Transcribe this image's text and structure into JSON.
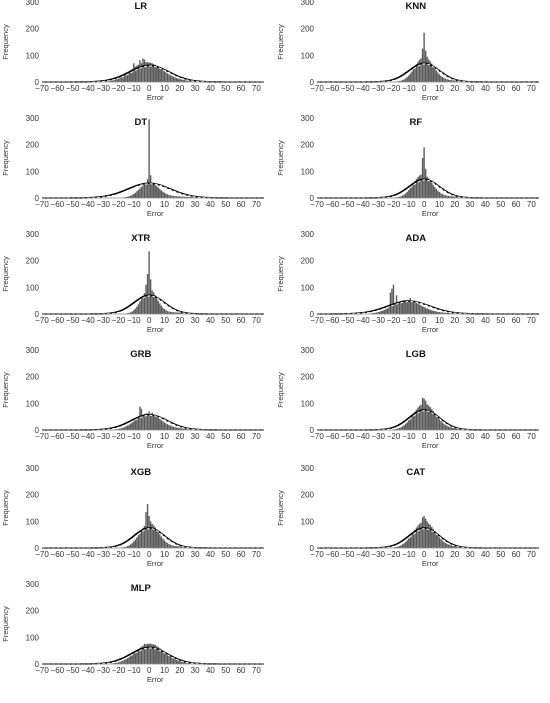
{
  "figure": {
    "bar_color": "#595959",
    "normal_curve_color": "#000000",
    "density_curve_color": "#ffffff"
  },
  "chart_data": [
    {
      "type": "bar",
      "title": "LR",
      "xlabel": "Error",
      "ylabel": "Frequency",
      "xlim": [
        -70,
        75
      ],
      "ylim": [
        0,
        300
      ],
      "xticks": [
        -70,
        -60,
        -50,
        -40,
        -30,
        -20,
        -10,
        0,
        10,
        20,
        30,
        40,
        50,
        60,
        70
      ],
      "yticks": [
        0,
        100,
        200,
        300
      ],
      "grid": false,
      "legend": "none",
      "bin_width": 1,
      "histogram": {
        "center": -2,
        "sigma": 10,
        "peak": 70,
        "spikes": [
          [
            -6,
            82
          ],
          [
            -4,
            88
          ],
          [
            -3,
            84
          ],
          [
            -10,
            70
          ]
        ]
      },
      "series": [
        {
          "type": "line",
          "mean": 0,
          "std": 13,
          "peak": 62
        }
      ]
    },
    {
      "type": "bar",
      "title": "KNN",
      "xlabel": "Error",
      "ylabel": "Frequency",
      "xlim": [
        -70,
        75
      ],
      "ylim": [
        0,
        300
      ],
      "xticks": [
        -70,
        -60,
        -50,
        -40,
        -30,
        -20,
        -10,
        0,
        10,
        20,
        30,
        40,
        50,
        60,
        70
      ],
      "yticks": [
        0,
        100,
        200,
        300
      ],
      "grid": false,
      "legend": "none",
      "bin_width": 1,
      "histogram": {
        "center": 0,
        "sigma": 6,
        "peak": 90,
        "spikes": [
          [
            0,
            185
          ],
          [
            -1,
            125
          ],
          [
            1,
            118
          ],
          [
            2,
            95
          ]
        ]
      },
      "series": [
        {
          "type": "line",
          "mean": 0,
          "std": 10,
          "peak": 70
        }
      ]
    },
    {
      "type": "bar",
      "title": "DT",
      "xlabel": "Error",
      "ylabel": "Frequency",
      "xlim": [
        -70,
        75
      ],
      "ylim": [
        0,
        300
      ],
      "xticks": [
        -70,
        -60,
        -50,
        -40,
        -30,
        -20,
        -10,
        0,
        10,
        20,
        30,
        40,
        50,
        60,
        70
      ],
      "yticks": [
        0,
        100,
        200,
        300
      ],
      "grid": false,
      "legend": "none",
      "bin_width": 1,
      "histogram": {
        "center": 0,
        "sigma": 6,
        "peak": 55,
        "spikes": [
          [
            0,
            295
          ],
          [
            1,
            85
          ],
          [
            -1,
            70
          ]
        ]
      },
      "series": [
        {
          "type": "line",
          "mean": 0,
          "std": 14,
          "peak": 55
        }
      ]
    },
    {
      "type": "bar",
      "title": "RF",
      "xlabel": "Error",
      "ylabel": "Frequency",
      "xlim": [
        -70,
        75
      ],
      "ylim": [
        0,
        300
      ],
      "xticks": [
        -70,
        -60,
        -50,
        -40,
        -30,
        -20,
        -10,
        0,
        10,
        20,
        30,
        40,
        50,
        60,
        70
      ],
      "yticks": [
        0,
        100,
        200,
        300
      ],
      "grid": false,
      "legend": "none",
      "bin_width": 1,
      "histogram": {
        "center": -1,
        "sigma": 6,
        "peak": 85,
        "spikes": [
          [
            0,
            190
          ],
          [
            -1,
            150
          ],
          [
            1,
            110
          ]
        ]
      },
      "series": [
        {
          "type": "line",
          "mean": 0,
          "std": 10,
          "peak": 70
        }
      ]
    },
    {
      "type": "bar",
      "title": "XTR",
      "xlabel": "Error",
      "ylabel": "Frequency",
      "xlim": [
        -70,
        75
      ],
      "ylim": [
        0,
        300
      ],
      "xticks": [
        -70,
        -60,
        -50,
        -40,
        -30,
        -20,
        -10,
        0,
        10,
        20,
        30,
        40,
        50,
        60,
        70
      ],
      "yticks": [
        0,
        100,
        200,
        300
      ],
      "grid": false,
      "legend": "none",
      "bin_width": 1,
      "histogram": {
        "center": 0,
        "sigma": 5,
        "peak": 90,
        "spikes": [
          [
            0,
            235
          ],
          [
            -1,
            150
          ],
          [
            1,
            130
          ],
          [
            -2,
            110
          ]
        ]
      },
      "series": [
        {
          "type": "line",
          "mean": 0,
          "std": 10,
          "peak": 70
        }
      ]
    },
    {
      "type": "bar",
      "title": "ADA",
      "xlabel": "Error",
      "ylabel": "Frequency",
      "xlim": [
        -70,
        75
      ],
      "ylim": [
        0,
        300
      ],
      "xticks": [
        -70,
        -60,
        -50,
        -40,
        -30,
        -20,
        -10,
        0,
        10,
        20,
        30,
        40,
        50,
        60,
        70
      ],
      "yticks": [
        0,
        100,
        200,
        300
      ],
      "grid": false,
      "legend": "none",
      "bin_width": 1,
      "histogram": {
        "center": -12,
        "sigma": 9,
        "peak": 48,
        "spikes": [
          [
            -20,
            110
          ],
          [
            -21,
            95
          ],
          [
            -22,
            80
          ],
          [
            -18,
            70
          ],
          [
            -9,
            60
          ]
        ]
      },
      "series": [
        {
          "type": "line",
          "mean": -10,
          "std": 14,
          "peak": 48
        }
      ]
    },
    {
      "type": "bar",
      "title": "GRB",
      "xlabel": "Error",
      "ylabel": "Frequency",
      "xlim": [
        -70,
        75
      ],
      "ylim": [
        0,
        300
      ],
      "xticks": [
        -70,
        -60,
        -50,
        -40,
        -30,
        -20,
        -10,
        0,
        10,
        20,
        30,
        40,
        50,
        60,
        70
      ],
      "yticks": [
        0,
        100,
        200,
        300
      ],
      "grid": false,
      "legend": "none",
      "bin_width": 1,
      "histogram": {
        "center": -1,
        "sigma": 8,
        "peak": 58,
        "spikes": [
          [
            -6,
            88
          ],
          [
            -5,
            80
          ],
          [
            0,
            70
          ],
          [
            2,
            65
          ]
        ]
      },
      "series": [
        {
          "type": "line",
          "mean": 0,
          "std": 12,
          "peak": 57
        }
      ]
    },
    {
      "type": "bar",
      "title": "LGB",
      "xlabel": "Error",
      "ylabel": "Frequency",
      "xlim": [
        -70,
        75
      ],
      "ylim": [
        0,
        300
      ],
      "xticks": [
        -70,
        -60,
        -50,
        -40,
        -30,
        -20,
        -10,
        0,
        10,
        20,
        30,
        40,
        50,
        60,
        70
      ],
      "yticks": [
        0,
        100,
        200,
        300
      ],
      "grid": false,
      "legend": "none",
      "bin_width": 1,
      "histogram": {
        "center": 0,
        "sigma": 7,
        "peak": 95,
        "spikes": [
          [
            -1,
            120
          ],
          [
            0,
            118
          ],
          [
            1,
            110
          ]
        ]
      },
      "series": [
        {
          "type": "line",
          "mean": 0,
          "std": 10,
          "peak": 75
        }
      ]
    },
    {
      "type": "bar",
      "title": "XGB",
      "xlabel": "Error",
      "ylabel": "Frequency",
      "xlim": [
        -70,
        75
      ],
      "ylim": [
        0,
        300
      ],
      "xticks": [
        -70,
        -60,
        -50,
        -40,
        -30,
        -20,
        -10,
        0,
        10,
        20,
        30,
        40,
        50,
        60,
        70
      ],
      "yticks": [
        0,
        100,
        200,
        300
      ],
      "grid": false,
      "legend": "none",
      "bin_width": 1,
      "histogram": {
        "center": 0,
        "sigma": 6,
        "peak": 90,
        "spikes": [
          [
            -1,
            165
          ],
          [
            -2,
            135
          ],
          [
            0,
            120
          ],
          [
            1,
            100
          ]
        ]
      },
      "series": [
        {
          "type": "line",
          "mean": 0,
          "std": 10,
          "peak": 75
        }
      ]
    },
    {
      "type": "bar",
      "title": "CAT",
      "xlabel": "Error",
      "ylabel": "Frequency",
      "xlim": [
        -70,
        75
      ],
      "ylim": [
        0,
        300
      ],
      "xticks": [
        -70,
        -60,
        -50,
        -40,
        -30,
        -20,
        -10,
        0,
        10,
        20,
        30,
        40,
        50,
        60,
        70
      ],
      "yticks": [
        0,
        100,
        200,
        300
      ],
      "grid": false,
      "legend": "none",
      "bin_width": 1,
      "histogram": {
        "center": 0,
        "sigma": 7,
        "peak": 95,
        "spikes": [
          [
            0,
            120
          ],
          [
            -1,
            115
          ],
          [
            1,
            110
          ],
          [
            2,
            100
          ]
        ]
      },
      "series": [
        {
          "type": "line",
          "mean": 0,
          "std": 10,
          "peak": 75
        }
      ]
    },
    {
      "type": "bar",
      "title": "MLP",
      "xlabel": "Error",
      "ylabel": "Frequency",
      "xlim": [
        -70,
        75
      ],
      "ylim": [
        0,
        300
      ],
      "xticks": [
        -70,
        -60,
        -50,
        -40,
        -30,
        -20,
        -10,
        0,
        10,
        20,
        30,
        40,
        50,
        60,
        70
      ],
      "yticks": [
        0,
        100,
        200,
        300
      ],
      "grid": false,
      "legend": "none",
      "bin_width": 1,
      "histogram": {
        "center": 0,
        "sigma": 9,
        "peak": 72,
        "spikes": [
          [
            -3,
            76
          ],
          [
            2,
            74
          ],
          [
            4,
            72
          ]
        ]
      },
      "series": [
        {
          "type": "line",
          "mean": 0,
          "std": 12,
          "peak": 62
        }
      ]
    }
  ]
}
